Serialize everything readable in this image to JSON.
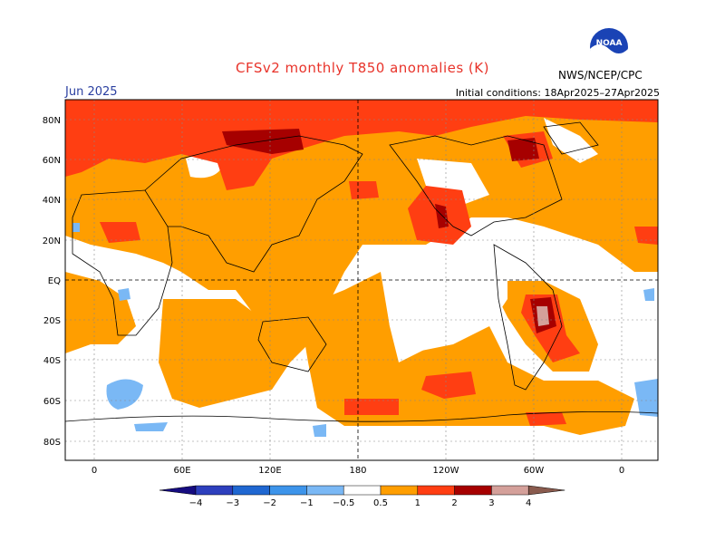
{
  "title": "CFSv2 monthly T850 anomalies (K)",
  "forecast_month": "Jun 2025",
  "initial_conditions": "Initial conditions: 18Apr2025–27Apr2025",
  "organization": "NWS/NCEP/CPC",
  "logo_text": "NOAA",
  "map": {
    "lat_labels": [
      "80N",
      "60N",
      "40N",
      "20N",
      "EQ",
      "20S",
      "40S",
      "60S",
      "80S"
    ],
    "lon_labels": [
      "0",
      "60E",
      "120E",
      "180",
      "120W",
      "60W",
      "0"
    ]
  },
  "colorbar": {
    "labels": [
      "−4",
      "−3",
      "−2",
      "−1",
      "−0.5",
      "0.5",
      "1",
      "2",
      "3",
      "4"
    ],
    "colors": [
      "#160c80",
      "#2d3fbd",
      "#1f67d1",
      "#3d94ea",
      "#7ab8f5",
      "#ffffff",
      "#ff9e00",
      "#ff3e12",
      "#a60000",
      "#d4a09a",
      "#8a5b4e"
    ]
  }
}
